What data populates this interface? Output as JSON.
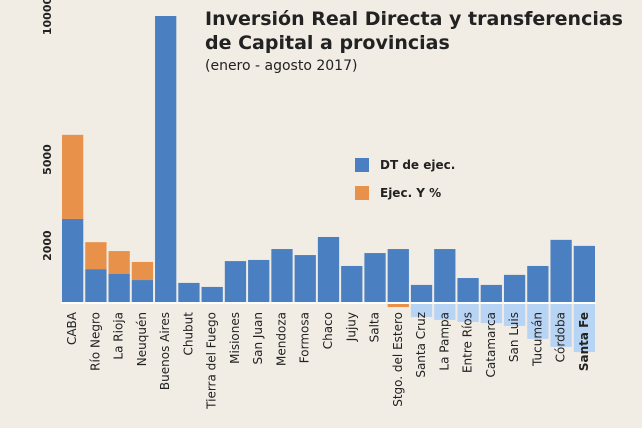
{
  "chart_data": {
    "type": "bar",
    "title_lines": [
      "Inversión Real Directa y transferencias",
      "de Capital a provincias"
    ],
    "subtitle": "(enero - agosto 2017)",
    "categories": [
      "CABA",
      "Río Negro",
      "La Rioja",
      "Neuquén",
      "Buenos Aires",
      "Chubut",
      "Tierra del Fuego",
      "Misiones",
      "San Juan",
      "Mendoza",
      "Formosa",
      "Chaco",
      "Jujuy",
      "Salta",
      "Stgo. del Estero",
      "Santa Cruz",
      "La Pampa",
      "Entre Ríos",
      "Catamarca",
      "San Luis",
      "Tucumán",
      "Córdoba",
      "Santa Fe"
    ],
    "highlight_index": 22,
    "series": [
      {
        "name": "DT de ejec.",
        "color": "#4a7fc1",
        "values": [
          2930,
          1180,
          1010,
          800,
          10000,
          700,
          560,
          1460,
          1500,
          1880,
          1670,
          2300,
          1290,
          1740,
          1880,
          630,
          1880,
          870,
          630,
          980,
          1290,
          2200,
          1990
        ]
      },
      {
        "name": "Ejec. Y %",
        "color": "#e8914a",
        "values": [
          2930,
          940,
          800,
          630,
          null,
          null,
          null,
          null,
          null,
          null,
          null,
          null,
          null,
          null,
          -140,
          null,
          null,
          null,
          null,
          null,
          null,
          null,
          null
        ]
      },
      {
        "color": "#b8d4f5",
        "values": [
          null,
          null,
          null,
          null,
          null,
          null,
          null,
          null,
          null,
          null,
          null,
          null,
          null,
          null,
          null,
          -490,
          -590,
          -660,
          -700,
          -800,
          -1250,
          -1530,
          -1710
        ]
      }
    ],
    "ylim": [
      0,
      10000
    ],
    "yticks": [
      2000,
      5000,
      10000
    ],
    "grid": false
  }
}
